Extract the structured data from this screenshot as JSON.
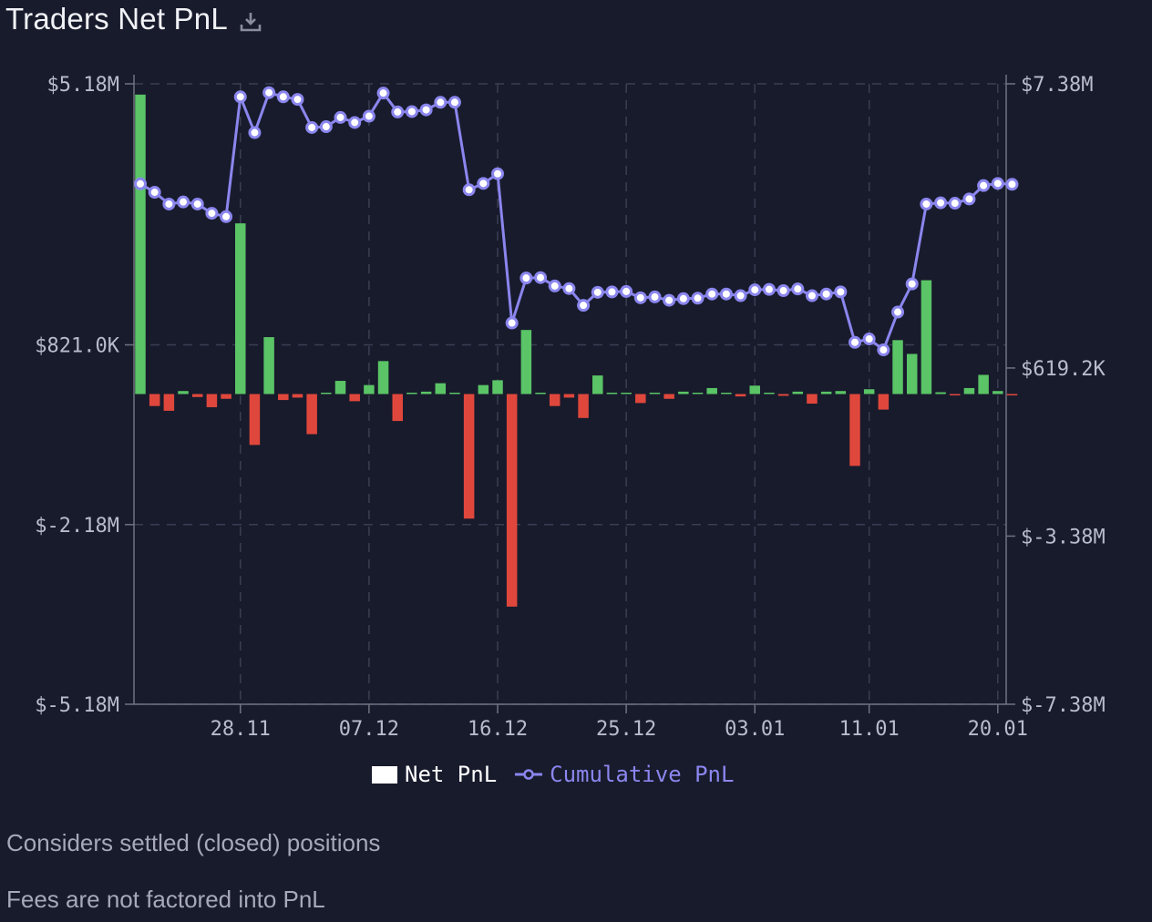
{
  "title": "Traders Net PnL",
  "legend": {
    "net": "Net PnL",
    "cumulative": "Cumulative PnL"
  },
  "notes": [
    "Considers settled (closed) positions",
    "Fees are not factored into PnL"
  ],
  "colors": {
    "background": "#181b2c",
    "positive": "#5ac466",
    "negative": "#e0473c",
    "line": "#8b86ee",
    "axis": "#6f7380",
    "grid": "#3a3e52"
  },
  "chart_data": {
    "type": "bar+line",
    "x_tick_labels": [
      "28.11",
      "07.12",
      "16.12",
      "25.12",
      "03.01",
      "11.01",
      "20.01"
    ],
    "x_tick_index": [
      7,
      16,
      25,
      34,
      43,
      51,
      60
    ],
    "left_axis": {
      "ticks": [
        "$5.18M",
        "$821.0K",
        "$-2.18M",
        "$-5.18M"
      ],
      "tick_values": [
        5.18,
        0.821,
        -2.18,
        -5.18
      ],
      "ylim": [
        -5.18,
        5.18
      ],
      "unit": "$M"
    },
    "right_axis": {
      "ticks": [
        "$7.38M",
        "$619.2K",
        "$-3.38M",
        "$-7.38M"
      ],
      "tick_values": [
        7.38,
        0.6192,
        -3.38,
        -7.38
      ],
      "ylim": [
        -7.38,
        7.38
      ],
      "unit": "$M"
    },
    "grid": true,
    "legend_position": "bottom-center",
    "series": [
      {
        "name": "Net PnL",
        "axis": "left",
        "values": [
          5.0,
          -0.2,
          -0.28,
          0.05,
          -0.05,
          -0.22,
          -0.08,
          2.85,
          -0.85,
          0.95,
          -0.1,
          -0.06,
          -0.67,
          0.02,
          0.22,
          -0.12,
          0.15,
          0.55,
          -0.45,
          0.01,
          0.04,
          0.18,
          0.0,
          -2.08,
          0.15,
          0.23,
          -3.55,
          1.07,
          0.01,
          -0.2,
          -0.06,
          -0.4,
          0.31,
          0.01,
          0.01,
          -0.15,
          0.02,
          -0.08,
          0.04,
          0.01,
          0.1,
          0.0,
          -0.04,
          0.14,
          0.01,
          -0.03,
          0.04,
          -0.16,
          0.04,
          0.05,
          -1.2,
          0.08,
          -0.26,
          0.9,
          0.67,
          1.9,
          0.03,
          -0.01,
          0.1,
          0.32,
          0.05,
          -0.02
        ]
      },
      {
        "name": "Cumulative PnL",
        "axis": "right",
        "values": [
          5.0,
          4.8,
          4.52,
          4.57,
          4.52,
          4.3,
          4.22,
          7.07,
          6.22,
          7.17,
          7.07,
          7.01,
          6.34,
          6.36,
          6.58,
          6.46,
          6.61,
          7.16,
          6.71,
          6.72,
          6.76,
          6.94,
          6.94,
          4.86,
          5.01,
          5.24,
          1.69,
          2.76,
          2.77,
          2.57,
          2.51,
          2.11,
          2.42,
          2.43,
          2.44,
          2.29,
          2.31,
          2.23,
          2.27,
          2.28,
          2.38,
          2.38,
          2.34,
          2.48,
          2.49,
          2.46,
          2.5,
          2.34,
          2.38,
          2.43,
          1.23,
          1.31,
          1.05,
          1.95,
          2.62,
          4.52,
          4.55,
          4.54,
          4.64,
          4.96,
          5.01,
          4.99
        ]
      }
    ]
  }
}
